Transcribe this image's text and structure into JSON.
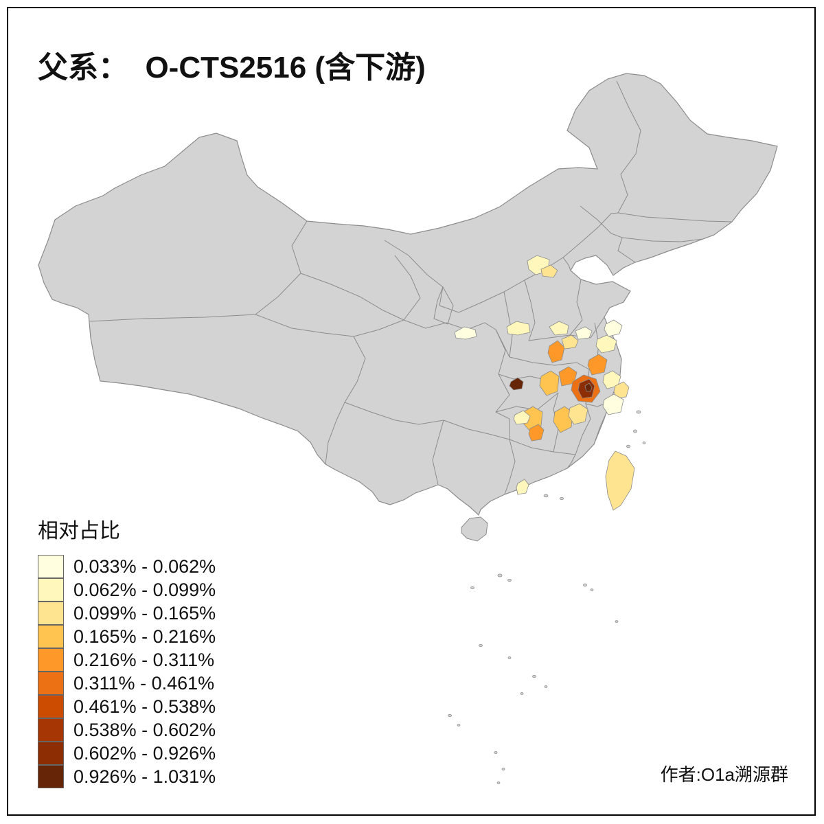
{
  "title": "父系：  O-CTS2516 (含下游)",
  "legend": {
    "title": "相对占比",
    "bins": [
      {
        "label": "0.033% - 0.062%",
        "color": "#FFFFE0"
      },
      {
        "label": "0.062% - 0.099%",
        "color": "#FFF7BC"
      },
      {
        "label": "0.099% - 0.165%",
        "color": "#FEE391"
      },
      {
        "label": "0.165% - 0.216%",
        "color": "#FEC44F"
      },
      {
        "label": "0.216% - 0.311%",
        "color": "#FE9929"
      },
      {
        "label": "0.311% - 0.461%",
        "color": "#EC7014"
      },
      {
        "label": "0.461% - 0.538%",
        "color": "#CC4C02"
      },
      {
        "label": "0.538% - 0.602%",
        "color": "#A63603"
      },
      {
        "label": "0.602% - 0.926%",
        "color": "#8C2D04"
      },
      {
        "label": "0.926% - 1.031%",
        "color": "#662506"
      }
    ]
  },
  "author": "作者:O1a溯源群",
  "map": {
    "land_color": "#d3d3d3",
    "border_color": "#8c8c8c",
    "background": "#ffffff"
  }
}
